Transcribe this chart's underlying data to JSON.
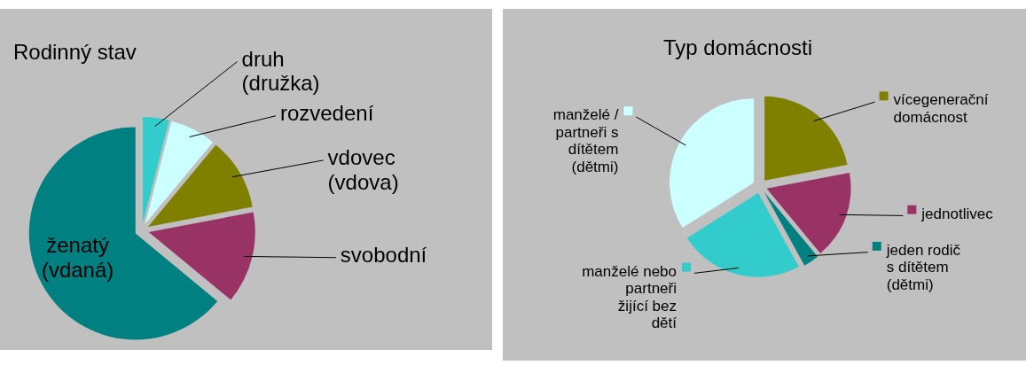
{
  "chart_data": [
    {
      "type": "pie",
      "title": "Rodinný stav",
      "categories": [
        "druh (družka)",
        "rozvedení",
        "vdovec (vdova)",
        "svobodní",
        "ženatý (vdaná)"
      ],
      "values": [
        4,
        7,
        11,
        14,
        64
      ],
      "colors": [
        "#33cccc",
        "#ccffff",
        "#808000",
        "#993366",
        "#008080"
      ],
      "legend": false
    },
    {
      "type": "pie",
      "title": "Typ domácnosti",
      "categories": [
        "vícegenerační domácnost",
        "jednotlivec",
        "jeden rodič s dítětem (dětmi)",
        "manželé nebo partneři žijící bez dětí",
        "manželé / partneři s dítětem (dětmi)"
      ],
      "values": [
        22,
        17,
        3,
        24,
        34
      ],
      "colors": [
        "#808000",
        "#993366",
        "#008080",
        "#33cccc",
        "#ccffff"
      ],
      "legend": "right"
    }
  ]
}
